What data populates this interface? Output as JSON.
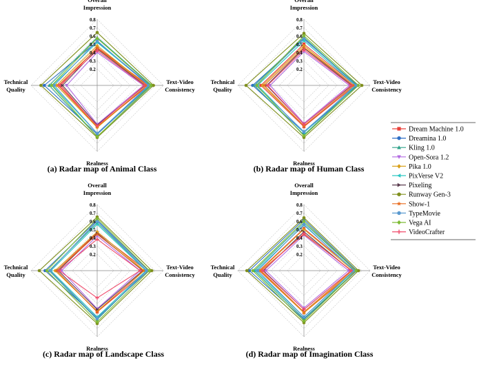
{
  "chart_data": [
    {
      "type": "radar",
      "caption": "(a) Radar map of Animal Class",
      "axes": [
        "Overall Impression",
        "Text-Video Consistency",
        "Realness",
        "Technical Quality"
      ],
      "rlim": [
        0,
        0.8
      ],
      "ticks": [
        "0.2",
        "0.3",
        "0.4",
        "0.5",
        "0.6",
        "0.7",
        "0.8"
      ],
      "series": [
        {
          "name": "Dream Machine 1.0",
          "values": [
            0.46,
            0.62,
            0.5,
            0.44
          ]
        },
        {
          "name": "Dreamina 1.0",
          "values": [
            0.53,
            0.64,
            0.59,
            0.64
          ]
        },
        {
          "name": "Kling 1.0",
          "values": [
            0.58,
            0.66,
            0.62,
            0.58
          ]
        },
        {
          "name": "Open-Sora 1.2",
          "values": [
            0.4,
            0.56,
            0.47,
            0.37
          ]
        },
        {
          "name": "Pika 1.0",
          "values": [
            0.48,
            0.6,
            0.51,
            0.49
          ]
        },
        {
          "name": "PixVerse V2",
          "values": [
            0.52,
            0.63,
            0.58,
            0.54
          ]
        },
        {
          "name": "Pixeling",
          "values": [
            0.44,
            0.58,
            0.48,
            0.42
          ]
        },
        {
          "name": "Runway Gen-3",
          "values": [
            0.64,
            0.68,
            0.63,
            0.68
          ]
        },
        {
          "name": "Show-1",
          "values": [
            0.45,
            0.6,
            0.5,
            0.47
          ]
        },
        {
          "name": "TypeMovie",
          "values": [
            0.54,
            0.62,
            0.58,
            0.52
          ]
        },
        {
          "name": "Vega AI",
          "values": [
            0.57,
            0.65,
            0.62,
            0.55
          ]
        },
        {
          "name": "VideoCrafter",
          "values": [
            0.42,
            0.57,
            0.49,
            0.46
          ]
        }
      ]
    },
    {
      "type": "radar",
      "caption": "(b) Radar map of Human Class",
      "axes": [
        "Overall Impression",
        "Text-Video Consistency",
        "Realness",
        "Technical Quality"
      ],
      "rlim": [
        0,
        0.8
      ],
      "ticks": [
        "0.2",
        "0.3",
        "0.4",
        "0.5",
        "0.6",
        "0.7",
        "0.8"
      ],
      "series": [
        {
          "name": "Dream Machine 1.0",
          "values": [
            0.5,
            0.62,
            0.5,
            0.52
          ]
        },
        {
          "name": "Dreamina 1.0",
          "values": [
            0.56,
            0.65,
            0.57,
            0.62
          ]
        },
        {
          "name": "Kling 1.0",
          "values": [
            0.58,
            0.64,
            0.6,
            0.6
          ]
        },
        {
          "name": "Open-Sora 1.2",
          "values": [
            0.41,
            0.55,
            0.46,
            0.41
          ]
        },
        {
          "name": "Pika 1.0",
          "values": [
            0.48,
            0.6,
            0.49,
            0.5
          ]
        },
        {
          "name": "PixVerse V2",
          "values": [
            0.54,
            0.62,
            0.57,
            0.56
          ]
        },
        {
          "name": "Pixeling",
          "values": [
            0.45,
            0.58,
            0.47,
            0.45
          ]
        },
        {
          "name": "Runway Gen-3",
          "values": [
            0.63,
            0.7,
            0.63,
            0.7
          ]
        },
        {
          "name": "Show-1",
          "values": [
            0.46,
            0.6,
            0.49,
            0.48
          ]
        },
        {
          "name": "TypeMovie",
          "values": [
            0.57,
            0.63,
            0.56,
            0.58
          ]
        },
        {
          "name": "Vega AI",
          "values": [
            0.6,
            0.66,
            0.61,
            0.57
          ]
        },
        {
          "name": "VideoCrafter",
          "values": [
            0.43,
            0.57,
            0.47,
            0.44
          ]
        }
      ]
    },
    {
      "type": "radar",
      "caption": "(c) Radar map of Landscape Class",
      "axes": [
        "Overall Impression",
        "Text-Video Consistency",
        "Realness",
        "Technical Quality"
      ],
      "rlim": [
        0,
        0.8
      ],
      "ticks": [
        "0.2",
        "0.3",
        "0.4",
        "0.5",
        "0.6",
        "0.7",
        "0.8"
      ],
      "series": [
        {
          "name": "Dream Machine 1.0",
          "values": [
            0.46,
            0.6,
            0.5,
            0.49
          ]
        },
        {
          "name": "Dreamina 1.0",
          "values": [
            0.61,
            0.62,
            0.57,
            0.63
          ]
        },
        {
          "name": "Kling 1.0",
          "values": [
            0.58,
            0.6,
            0.59,
            0.58
          ]
        },
        {
          "name": "Open-Sora 1.2",
          "values": [
            0.42,
            0.52,
            0.46,
            0.43
          ]
        },
        {
          "name": "Pika 1.0",
          "values": [
            0.47,
            0.57,
            0.49,
            0.51
          ]
        },
        {
          "name": "PixVerse V2",
          "values": [
            0.56,
            0.59,
            0.56,
            0.56
          ]
        },
        {
          "name": "Pixeling",
          "values": [
            0.45,
            0.55,
            0.47,
            0.47
          ]
        },
        {
          "name": "Runway Gen-3",
          "values": [
            0.65,
            0.66,
            0.64,
            0.7
          ]
        },
        {
          "name": "Show-1",
          "values": [
            0.44,
            0.56,
            0.5,
            0.49
          ]
        },
        {
          "name": "TypeMovie",
          "values": [
            0.6,
            0.6,
            0.58,
            0.57
          ]
        },
        {
          "name": "Vega AI",
          "values": [
            0.63,
            0.63,
            0.62,
            0.61
          ]
        },
        {
          "name": "VideoCrafter",
          "values": [
            0.38,
            0.52,
            0.33,
            0.46
          ]
        }
      ]
    },
    {
      "type": "radar",
      "caption": "(d) Radar map of Imagination Class",
      "axes": [
        "Overall Impression",
        "Text-Video Consistency",
        "Realness",
        "Technical Quality"
      ],
      "rlim": [
        0,
        0.8
      ],
      "ticks": [
        "0.2",
        "0.3",
        "0.4",
        "0.5",
        "0.6",
        "0.7",
        "0.8"
      ],
      "series": [
        {
          "name": "Dream Machine 1.0",
          "values": [
            0.51,
            0.62,
            0.51,
            0.54
          ]
        },
        {
          "name": "Dreamina 1.0",
          "values": [
            0.62,
            0.64,
            0.59,
            0.66
          ]
        },
        {
          "name": "Kling 1.0",
          "values": [
            0.58,
            0.63,
            0.58,
            0.6
          ]
        },
        {
          "name": "Open-Sora 1.2",
          "values": [
            0.43,
            0.54,
            0.45,
            0.46
          ]
        },
        {
          "name": "Pika 1.0",
          "values": [
            0.5,
            0.6,
            0.51,
            0.53
          ]
        },
        {
          "name": "PixVerse V2",
          "values": [
            0.55,
            0.61,
            0.56,
            0.58
          ]
        },
        {
          "name": "Pixeling",
          "values": [
            0.47,
            0.57,
            0.47,
            0.49
          ]
        },
        {
          "name": "Runway Gen-3",
          "values": [
            0.64,
            0.66,
            0.63,
            0.69
          ]
        },
        {
          "name": "Show-1",
          "values": [
            0.44,
            0.58,
            0.5,
            0.52
          ]
        },
        {
          "name": "TypeMovie",
          "values": [
            0.56,
            0.6,
            0.56,
            0.56
          ]
        },
        {
          "name": "Vega AI",
          "values": [
            0.6,
            0.63,
            0.61,
            0.62
          ]
        },
        {
          "name": "VideoCrafter",
          "values": [
            0.45,
            0.57,
            0.47,
            0.5
          ]
        }
      ]
    }
  ],
  "legend": {
    "items": [
      {
        "name": "Dream Machine 1.0",
        "color": "#E8413A",
        "marker": "square"
      },
      {
        "name": "Dreamina 1.0",
        "color": "#2E6FC6",
        "marker": "circle"
      },
      {
        "name": "Kling 1.0",
        "color": "#2FA28A",
        "marker": "triangle-up"
      },
      {
        "name": "Open-Sora 1.2",
        "color": "#B36AE2",
        "marker": "triangle-down"
      },
      {
        "name": "Pika 1.0",
        "color": "#D9A11C",
        "marker": "diamond"
      },
      {
        "name": "PixVerse V2",
        "color": "#2CC7C4",
        "marker": "triangle-left"
      },
      {
        "name": "Pixeling",
        "color": "#5A3B4E",
        "marker": "triangle-right"
      },
      {
        "name": "Runway Gen-3",
        "color": "#7F8F1D",
        "marker": "hexagon"
      },
      {
        "name": "Show-1",
        "color": "#E86A1C",
        "marker": "star"
      },
      {
        "name": "TypeMovie",
        "color": "#5A9AD0",
        "marker": "circle"
      },
      {
        "name": "Vega AI",
        "color": "#7EBB34",
        "marker": "diamond"
      },
      {
        "name": "VideoCrafter",
        "color": "#F04D6D",
        "marker": "plus"
      }
    ]
  }
}
